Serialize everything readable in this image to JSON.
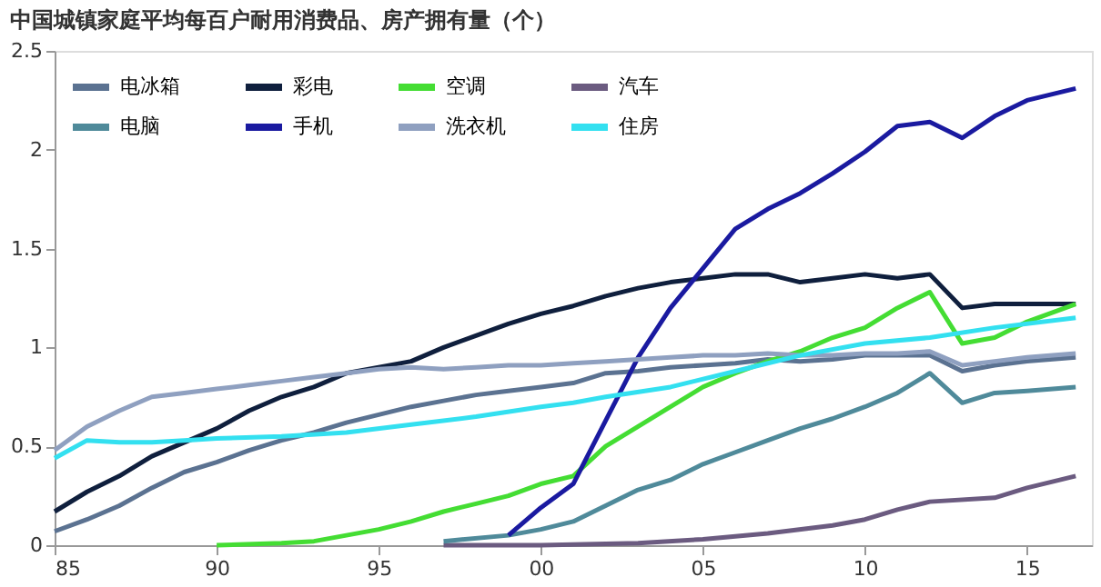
{
  "chart_data": {
    "type": "line",
    "title": "中国城镇家庭平均每百户耐用消费品、房产拥有量（个）",
    "xlim": [
      1985,
      2017
    ],
    "xticks": [
      {
        "value": 1985,
        "label": "85"
      },
      {
        "value": 1990,
        "label": "90"
      },
      {
        "value": 1995,
        "label": "95"
      },
      {
        "value": 2000,
        "label": "00"
      },
      {
        "value": 2005,
        "label": "05"
      },
      {
        "value": 2010,
        "label": "10"
      },
      {
        "value": 2015,
        "label": "15"
      }
    ],
    "ylim": [
      0,
      2.5
    ],
    "yticks": [
      0,
      0.5,
      1,
      1.5,
      2,
      2.5
    ],
    "grid": false,
    "legend": "top left",
    "line_style": "solid",
    "marker": "none",
    "series": [
      {
        "name": "电冰箱",
        "color": "#5b7291",
        "x": [
          1985,
          1986,
          1987,
          1988,
          1989,
          1990,
          1991,
          1992,
          1993,
          1994,
          1995,
          1996,
          1997,
          1998,
          1999,
          2000,
          2001,
          2002,
          2003,
          2004,
          2005,
          2006,
          2007,
          2008,
          2009,
          2010,
          2011,
          2012,
          2013,
          2014,
          2015,
          2016.5
        ],
        "values": [
          0.07,
          0.13,
          0.2,
          0.29,
          0.37,
          0.42,
          0.48,
          0.53,
          0.57,
          0.62,
          0.66,
          0.7,
          0.73,
          0.76,
          0.78,
          0.8,
          0.82,
          0.87,
          0.88,
          0.9,
          0.91,
          0.92,
          0.94,
          0.93,
          0.94,
          0.96,
          0.96,
          0.96,
          0.88,
          0.91,
          0.93,
          0.95
        ]
      },
      {
        "name": "彩电",
        "color": "#0f1f3d",
        "x": [
          1985,
          1986,
          1987,
          1988,
          1989,
          1990,
          1991,
          1992,
          1993,
          1994,
          1995,
          1996,
          1997,
          1998,
          1999,
          2000,
          2001,
          2002,
          2003,
          2004,
          2005,
          2006,
          2007,
          2008,
          2009,
          2010,
          2011,
          2012,
          2013,
          2014,
          2015,
          2016.5
        ],
        "values": [
          0.17,
          0.27,
          0.35,
          0.45,
          0.52,
          0.59,
          0.68,
          0.75,
          0.8,
          0.87,
          0.9,
          0.93,
          1.0,
          1.06,
          1.12,
          1.17,
          1.21,
          1.26,
          1.3,
          1.33,
          1.35,
          1.37,
          1.37,
          1.33,
          1.35,
          1.37,
          1.35,
          1.37,
          1.2,
          1.22,
          1.22,
          1.22
        ]
      },
      {
        "name": "空调",
        "color": "#44dd33",
        "x": [
          1990,
          1992,
          1993,
          1994,
          1995,
          1996,
          1997,
          1998,
          1999,
          2000,
          2001,
          2002,
          2003,
          2004,
          2005,
          2006,
          2007,
          2008,
          2009,
          2010,
          2011,
          2012,
          2013,
          2014,
          2015,
          2016.5
        ],
        "values": [
          0.0,
          0.01,
          0.02,
          0.05,
          0.08,
          0.12,
          0.17,
          0.21,
          0.25,
          0.31,
          0.35,
          0.5,
          0.6,
          0.7,
          0.8,
          0.87,
          0.93,
          0.98,
          1.05,
          1.1,
          1.2,
          1.28,
          1.02,
          1.05,
          1.13,
          1.22
        ]
      },
      {
        "name": "汽车",
        "color": "#6b5b80",
        "x": [
          1997,
          2000,
          2003,
          2005,
          2007,
          2009,
          2010,
          2011,
          2012,
          2014,
          2015,
          2016.5
        ],
        "values": [
          0.0,
          0.0,
          0.01,
          0.03,
          0.06,
          0.1,
          0.13,
          0.18,
          0.22,
          0.24,
          0.29,
          0.35
        ]
      },
      {
        "name": "电脑",
        "color": "#4f8a9a",
        "x": [
          1997,
          1999,
          2000,
          2001,
          2002,
          2003,
          2004,
          2005,
          2006,
          2007,
          2008,
          2009,
          2010,
          2011,
          2012,
          2013,
          2014,
          2015,
          2016.5
        ],
        "values": [
          0.02,
          0.05,
          0.08,
          0.12,
          0.2,
          0.28,
          0.33,
          0.41,
          0.47,
          0.53,
          0.59,
          0.64,
          0.7,
          0.77,
          0.87,
          0.72,
          0.77,
          0.78,
          0.8
        ]
      },
      {
        "name": "手机",
        "color": "#1a1aa0",
        "x": [
          1999,
          2000,
          2001,
          2002,
          2003,
          2004,
          2005,
          2006,
          2007,
          2008,
          2009,
          2010,
          2011,
          2012,
          2013,
          2014,
          2015,
          2016.5
        ],
        "values": [
          0.05,
          0.19,
          0.31,
          0.63,
          0.95,
          1.2,
          1.4,
          1.6,
          1.7,
          1.78,
          1.88,
          1.99,
          2.12,
          2.14,
          2.06,
          2.17,
          2.25,
          2.31
        ]
      },
      {
        "name": "洗衣机",
        "color": "#8fa0c0",
        "x": [
          1985,
          1986,
          1987,
          1988,
          1989,
          1990,
          1991,
          1992,
          1993,
          1994,
          1995,
          1996,
          1997,
          1998,
          1999,
          2000,
          2001,
          2002,
          2003,
          2004,
          2005,
          2006,
          2007,
          2008,
          2009,
          2010,
          2011,
          2012,
          2013,
          2014,
          2015,
          2016.5
        ],
        "values": [
          0.48,
          0.6,
          0.68,
          0.75,
          0.77,
          0.79,
          0.81,
          0.83,
          0.85,
          0.87,
          0.89,
          0.9,
          0.89,
          0.9,
          0.91,
          0.91,
          0.92,
          0.93,
          0.94,
          0.95,
          0.96,
          0.96,
          0.97,
          0.96,
          0.96,
          0.97,
          0.97,
          0.98,
          0.91,
          0.93,
          0.95,
          0.97
        ]
      },
      {
        "name": "住房",
        "color": "#33e0f0",
        "x": [
          1985,
          1986,
          1987,
          1988,
          1989,
          1990,
          1992,
          1994,
          1996,
          1998,
          2000,
          2001,
          2002,
          2004,
          2006,
          2008,
          2010,
          2012,
          2014,
          2016.5
        ],
        "values": [
          0.44,
          0.53,
          0.52,
          0.52,
          0.53,
          0.54,
          0.55,
          0.57,
          0.61,
          0.65,
          0.7,
          0.72,
          0.75,
          0.8,
          0.88,
          0.96,
          1.02,
          1.05,
          1.1,
          1.15
        ]
      }
    ]
  }
}
